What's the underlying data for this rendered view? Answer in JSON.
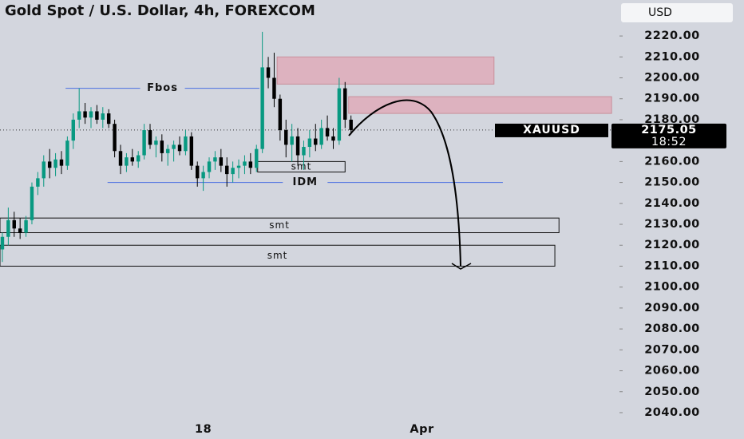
{
  "chart_data": {
    "type": "candlestick",
    "title": "Gold Spot / U.S. Dollar, 4h, FOREXCOM",
    "currency": "USD",
    "symbol": "XAUUSD",
    "last_price": {
      "value": 2175.05,
      "label": "2175.05"
    },
    "countdown": "18:52",
    "up_color": "#089981",
    "down_color": "#000000",
    "x": [
      0,
      1,
      2,
      3,
      4,
      5,
      6,
      7,
      8,
      9,
      10,
      11,
      12,
      13,
      14,
      15,
      16,
      17,
      18,
      19,
      20,
      21,
      22,
      23,
      24,
      25,
      26,
      27,
      28,
      29,
      30,
      31,
      32,
      33,
      34,
      35,
      36,
      37,
      38,
      39,
      40,
      41,
      42,
      43,
      44,
      45,
      46,
      47,
      48,
      49,
      50,
      51,
      52,
      53,
      54,
      55,
      56,
      57,
      58,
      59
    ],
    "open": [
      2118,
      2124,
      2132,
      2128,
      2126,
      2132,
      2148,
      2152,
      2160,
      2157,
      2161,
      2158,
      2170,
      2180,
      2184,
      2181,
      2184,
      2180,
      2183,
      2178,
      2165,
      2158,
      2162,
      2160,
      2163,
      2175,
      2168,
      2170,
      2164,
      2166,
      2168,
      2165,
      2172,
      2158,
      2152,
      2155,
      2160,
      2162,
      2158,
      2154,
      2157,
      2158,
      2160,
      2157,
      2166,
      2205,
      2200,
      2190,
      2175,
      2168,
      2172,
      2163,
      2167,
      2171,
      2168,
      2176,
      2172,
      2170,
      2195,
      2180
    ],
    "high": [
      2126,
      2138,
      2136,
      2133,
      2134,
      2150,
      2155,
      2163,
      2166,
      2164,
      2165,
      2172,
      2183,
      2195,
      2188,
      2186,
      2187,
      2186,
      2185,
      2180,
      2168,
      2164,
      2166,
      2165,
      2178,
      2178,
      2172,
      2173,
      2168,
      2170,
      2172,
      2175,
      2174,
      2160,
      2158,
      2162,
      2165,
      2166,
      2162,
      2160,
      2161,
      2163,
      2164,
      2168,
      2222,
      2210,
      2212,
      2192,
      2180,
      2178,
      2176,
      2170,
      2175,
      2178,
      2180,
      2182,
      2176,
      2200,
      2198,
      2182
    ],
    "low": [
      2112,
      2120,
      2124,
      2123,
      2124,
      2130,
      2144,
      2148,
      2152,
      2153,
      2154,
      2156,
      2166,
      2176,
      2178,
      2176,
      2178,
      2176,
      2176,
      2162,
      2154,
      2155,
      2158,
      2157,
      2161,
      2166,
      2162,
      2160,
      2158,
      2160,
      2163,
      2163,
      2156,
      2148,
      2146,
      2152,
      2156,
      2155,
      2148,
      2150,
      2152,
      2154,
      2154,
      2155,
      2164,
      2195,
      2186,
      2170,
      2162,
      2160,
      2158,
      2156,
      2162,
      2165,
      2166,
      2170,
      2166,
      2168,
      2176,
      2173
    ],
    "close": [
      2124,
      2132,
      2128,
      2126,
      2132,
      2148,
      2152,
      2160,
      2157,
      2161,
      2158,
      2170,
      2180,
      2184,
      2181,
      2184,
      2180,
      2183,
      2178,
      2165,
      2158,
      2162,
      2160,
      2163,
      2175,
      2168,
      2170,
      2164,
      2166,
      2168,
      2165,
      2172,
      2158,
      2152,
      2155,
      2160,
      2162,
      2158,
      2154,
      2157,
      2158,
      2160,
      2157,
      2166,
      2205,
      2200,
      2190,
      2175,
      2168,
      2172,
      2163,
      2167,
      2171,
      2168,
      2176,
      2172,
      2170,
      2195,
      2180,
      2175.05
    ],
    "xlim": [
      -0.4,
      104.3
    ],
    "xticks": [
      {
        "value": 34,
        "label": "18"
      },
      {
        "value": 71,
        "label": "Apr"
      }
    ],
    "ylim": [
      2027.4,
      2237.2
    ],
    "yticks": [
      {
        "value": 2220,
        "label": "2220.00"
      },
      {
        "value": 2210,
        "label": "2210.00"
      },
      {
        "value": 2200,
        "label": "2200.00"
      },
      {
        "value": 2190,
        "label": "2190.00"
      },
      {
        "value": 2180,
        "label": "2180.00"
      },
      {
        "value": 2170,
        "label": "2170.00"
      },
      {
        "value": 2160,
        "label": "2160.00"
      },
      {
        "value": 2150,
        "label": "2150.00"
      },
      {
        "value": 2140,
        "label": "2140.00"
      },
      {
        "value": 2130,
        "label": "2130.00"
      },
      {
        "value": 2120,
        "label": "2120.00"
      },
      {
        "value": 2110,
        "label": "2110.00"
      },
      {
        "value": 2100,
        "label": "2100.00"
      },
      {
        "value": 2090,
        "label": "2090.00"
      },
      {
        "value": 2080,
        "label": "2080.00"
      },
      {
        "value": 2070,
        "label": "2070.00"
      },
      {
        "value": 2060,
        "label": "2060.00"
      },
      {
        "value": 2050,
        "label": "2050.00"
      },
      {
        "value": 2040,
        "label": "2040.00"
      }
    ],
    "zones": [
      {
        "x": [
          46.5,
          83.2
        ],
        "y": [
          2197,
          2210
        ]
      },
      {
        "x": [
          58.6,
          103.1
        ],
        "y": [
          2183,
          2191
        ]
      }
    ],
    "levels": [
      {
        "label": "Fbos",
        "value": 2195,
        "x": [
          10.7,
          43.5
        ]
      },
      {
        "label": "IDM",
        "value": 2150,
        "x": [
          17.8,
          84.7
        ]
      }
    ],
    "boxes": [
      {
        "label": "smt",
        "x": [
          43.2,
          58
        ],
        "y": [
          2155,
          2160
        ]
      },
      {
        "label": "smt",
        "x": [
          -0.4,
          94.2
        ],
        "y": [
          2126,
          2133
        ]
      },
      {
        "label": "smt",
        "x": [
          -0.4,
          93.5
        ],
        "y": [
          2110,
          2120
        ]
      }
    ]
  }
}
